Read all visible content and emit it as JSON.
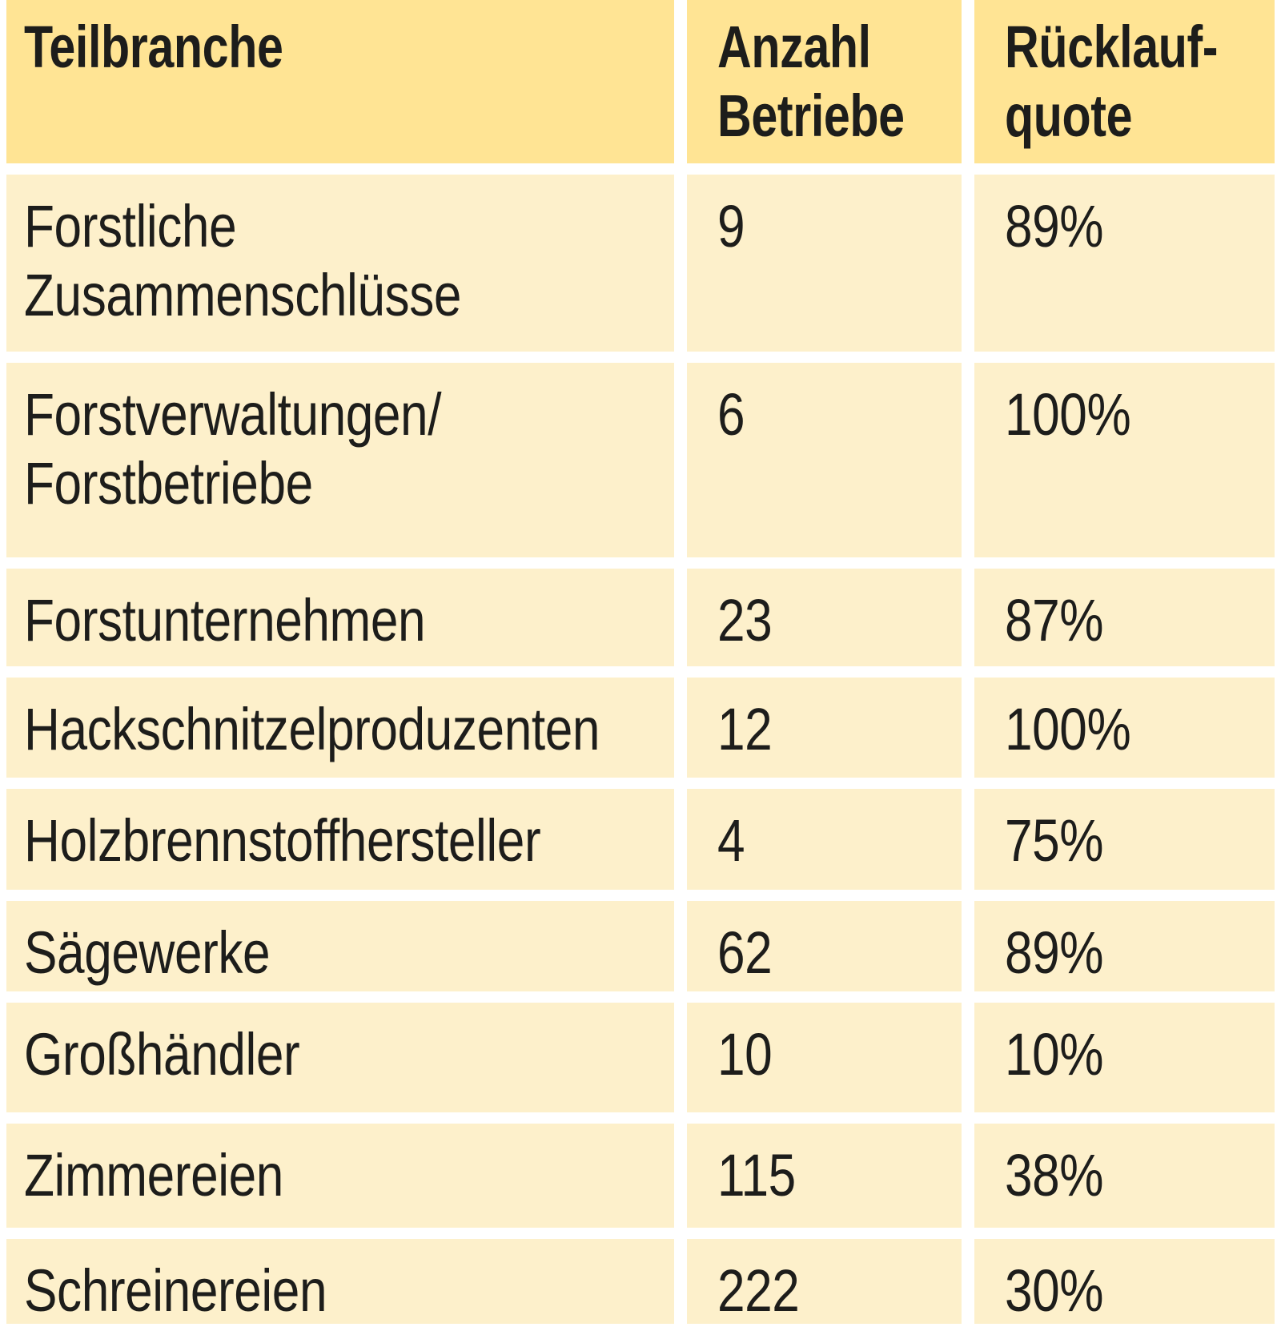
{
  "colors": {
    "header_bg": "#ffe494",
    "row_bg": "#fdf0cb",
    "gap": "#ffffff",
    "text": "#1d1d1b"
  },
  "table": {
    "headers": [
      {
        "id": "teilbranche",
        "label": "Teilbranche"
      },
      {
        "id": "anzahl_betriebe",
        "label": "Anzahl\nBetriebe"
      },
      {
        "id": "ruecklaufquote",
        "label": "Rücklauf-\nquote"
      }
    ],
    "rows": [
      {
        "teilbranche": "Forstliche\nZusammenschlüsse",
        "anzahl_betriebe": "9",
        "ruecklaufquote": "89%"
      },
      {
        "teilbranche": "Forstverwaltungen/\nForstbetriebe",
        "anzahl_betriebe": "6",
        "ruecklaufquote": "100%"
      },
      {
        "teilbranche": "Forstunternehmen",
        "anzahl_betriebe": "23",
        "ruecklaufquote": "87%"
      },
      {
        "teilbranche": "Hackschnitzelproduzenten",
        "anzahl_betriebe": "12",
        "ruecklaufquote": "100%"
      },
      {
        "teilbranche": "Holzbrennstoffhersteller",
        "anzahl_betriebe": "4",
        "ruecklaufquote": "75%"
      },
      {
        "teilbranche": "Sägewerke",
        "anzahl_betriebe": "62",
        "ruecklaufquote": "89%"
      },
      {
        "teilbranche": "Großhändler",
        "anzahl_betriebe": "10",
        "ruecklaufquote": "10%"
      },
      {
        "teilbranche": "Zimmereien",
        "anzahl_betriebe": "115",
        "ruecklaufquote": "38%"
      },
      {
        "teilbranche": "Schreinereien",
        "anzahl_betriebe": "222",
        "ruecklaufquote": "30%"
      }
    ]
  },
  "chart_data": {
    "type": "table",
    "columns": [
      "Teilbranche",
      "Anzahl Betriebe",
      "Rücklaufquote"
    ],
    "rows": [
      [
        "Forstliche Zusammenschlüsse",
        9,
        "89%"
      ],
      [
        "Forstverwaltungen/Forstbetriebe",
        6,
        "100%"
      ],
      [
        "Forstunternehmen",
        23,
        "87%"
      ],
      [
        "Hackschnitzelproduzenten",
        12,
        "100%"
      ],
      [
        "Holzbrennstoffhersteller",
        4,
        "75%"
      ],
      [
        "Sägewerke",
        62,
        "89%"
      ],
      [
        "Großhändler",
        10,
        "10%"
      ],
      [
        "Zimmereien",
        115,
        "38%"
      ],
      [
        "Schreinereien",
        222,
        "30%"
      ]
    ]
  }
}
